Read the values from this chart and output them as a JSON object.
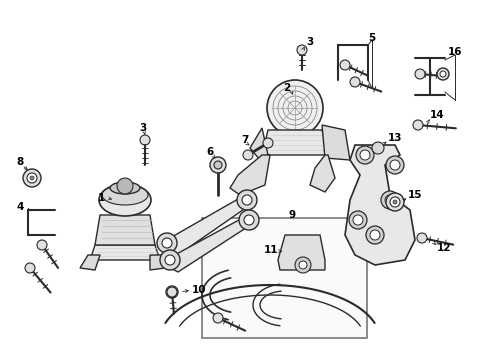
{
  "bg_color": "#ffffff",
  "fig_width": 4.9,
  "fig_height": 3.6,
  "dpi": 100,
  "line_color": "#2a2a2a",
  "light_fill": "#f0f0f0",
  "mid_fill": "#d8d8d8",
  "dark_fill": "#b0b0b0",
  "label_fontsize": 7.5,
  "label_color": "#000000"
}
